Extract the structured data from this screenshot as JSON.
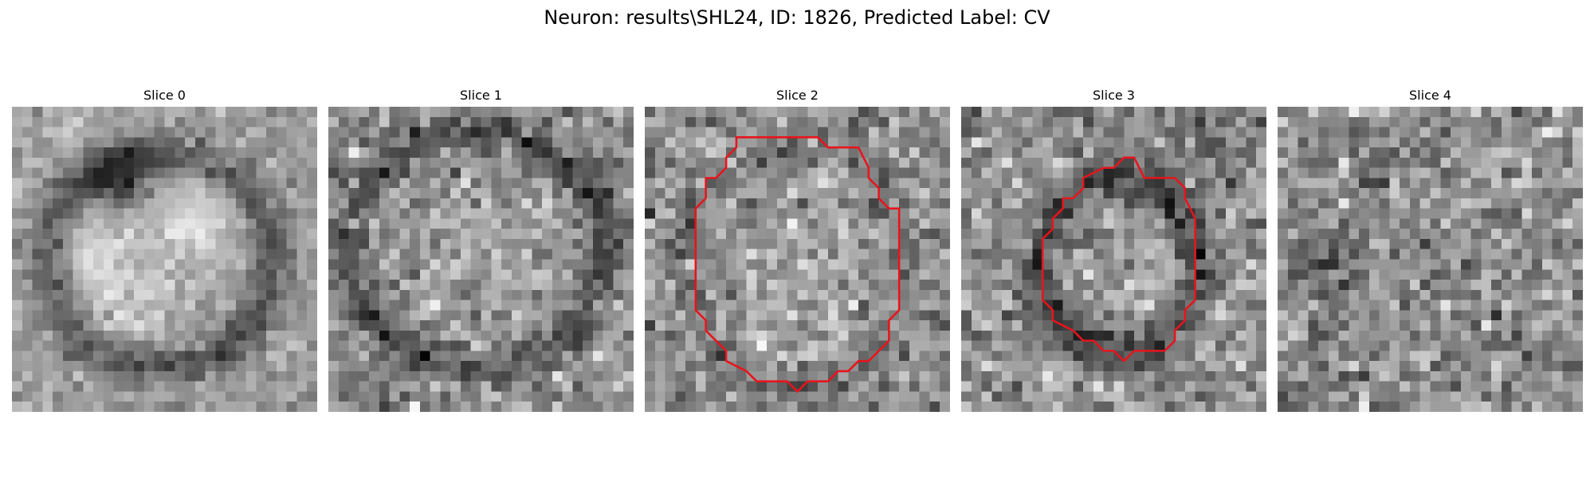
{
  "figure": {
    "title": "Neuron: results\\SHL24, ID: 1826, Predicted Label: CV",
    "contour_color": "#e8141c",
    "grid_size": 30
  },
  "slices": [
    {
      "label": "Slice 0",
      "has_contour": false,
      "description_key": "blurred-ring"
    },
    {
      "label": "Slice 1",
      "has_contour": false,
      "description_key": "noisy-ring"
    },
    {
      "label": "Slice 2",
      "has_contour": true,
      "description_key": "large-round"
    },
    {
      "label": "Slice 3",
      "has_contour": true,
      "description_key": "smaller-round"
    },
    {
      "label": "Slice 4",
      "has_contour": false,
      "description_key": "noise"
    }
  ]
}
